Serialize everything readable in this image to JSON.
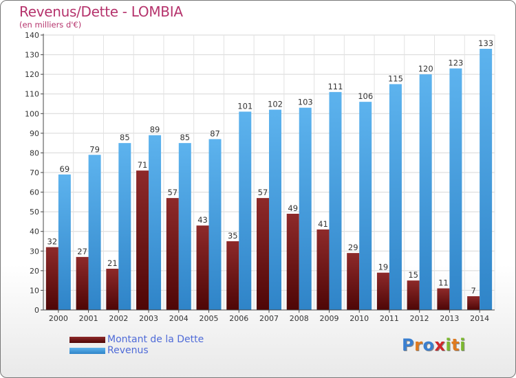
{
  "header": {
    "title": "Revenus/Dette - LOMBIA",
    "subtitle": "(en milliers d'€)"
  },
  "chart_data": {
    "type": "bar",
    "categories": [
      "2000",
      "2001",
      "2002",
      "2003",
      "2004",
      "2005",
      "2006",
      "2007",
      "2008",
      "2009",
      "2010",
      "2011",
      "2012",
      "2013",
      "2014"
    ],
    "series": [
      {
        "name": "Montant de la Dette",
        "color": "#7a1c1c",
        "values": [
          32,
          27,
          21,
          71,
          57,
          43,
          35,
          57,
          49,
          41,
          29,
          19,
          15,
          11,
          7
        ]
      },
      {
        "name": "Revenus",
        "color": "#4aa3e6",
        "values": [
          69,
          79,
          85,
          89,
          85,
          87,
          101,
          102,
          103,
          111,
          106,
          115,
          120,
          123,
          133
        ]
      }
    ],
    "ylim": [
      0,
      140
    ],
    "yticks": [
      0,
      10,
      20,
      30,
      40,
      50,
      60,
      70,
      80,
      90,
      100,
      110,
      120,
      130,
      140
    ],
    "grid": true,
    "legend_position": "bottom-left"
  },
  "logo": {
    "letters": [
      {
        "char": "P",
        "color": "#3a7fd0"
      },
      {
        "char": "r",
        "color": "#e07a1f"
      },
      {
        "char": "o",
        "color": "#3a7fd0"
      },
      {
        "char": "x",
        "color": "#d0272b"
      },
      {
        "char": "i",
        "color": "#7cb82f"
      },
      {
        "char": "t",
        "color": "#e07a1f"
      },
      {
        "char": "i",
        "color": "#7cb82f"
      }
    ]
  }
}
